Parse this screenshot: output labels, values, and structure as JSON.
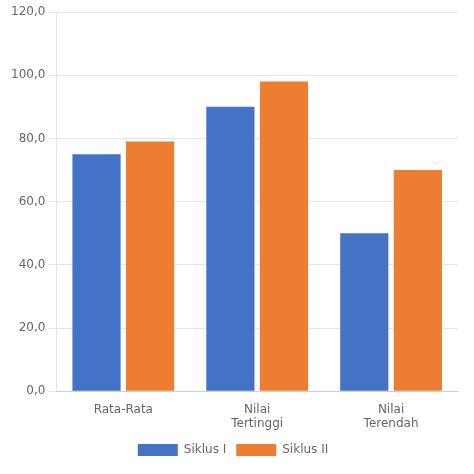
{
  "chart_data": {
    "type": "bar",
    "categories": [
      "Rata-Rata",
      "Nilai\nTertinggi",
      "Nilai\nTerendah"
    ],
    "series": [
      {
        "name": "Siklus I",
        "color": "#4472C4",
        "values": [
          75,
          90,
          50
        ]
      },
      {
        "name": "Siklus II",
        "color": "#ED7D31",
        "values": [
          79,
          98,
          70
        ]
      }
    ],
    "ylim": [
      0,
      120
    ],
    "yticks": [
      {
        "value": 0,
        "label": "0,0"
      },
      {
        "value": 20,
        "label": "20,0"
      },
      {
        "value": 40,
        "label": "40,0"
      },
      {
        "value": 60,
        "label": "60,0"
      },
      {
        "value": 80,
        "label": "80,0"
      },
      {
        "value": 100,
        "label": "100,0"
      },
      {
        "value": 120,
        "label": "120,0"
      }
    ],
    "grid": true,
    "legend": "bottom"
  }
}
